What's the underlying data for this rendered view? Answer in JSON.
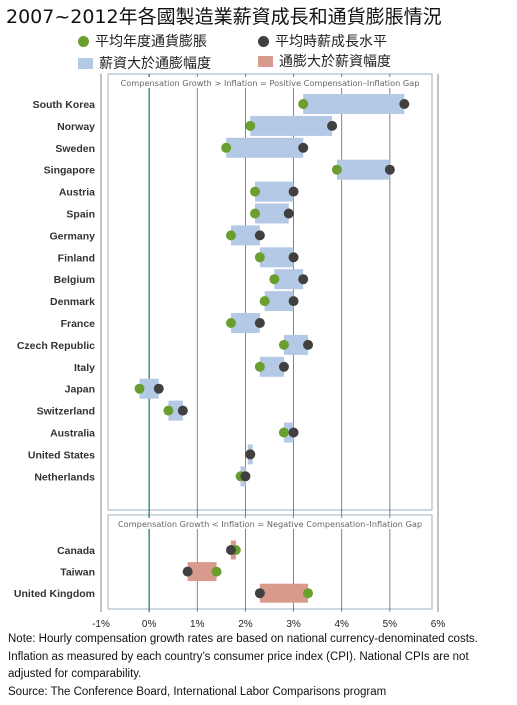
{
  "title": "2007~2012年各國製造業薪資成長和通貨膨脹情況",
  "legend": {
    "inflation": "平均年度通貨膨脹",
    "wage": "平均時薪成長水平",
    "positive_gap": "薪資大於通膨幅度",
    "negative_gap": "通膨大於薪資幅度"
  },
  "colors": {
    "inflation_dot": "#6a9e2e",
    "wage_dot": "#404040",
    "positive_bar": "#b4c9e6",
    "negative_bar": "#d99a8e",
    "zero_line": "#2b7a78",
    "panel_border": "#9fb0c0"
  },
  "chart_data": {
    "type": "dumbbell",
    "x_range": [
      -1,
      6
    ],
    "x_ticks": [
      "-1%",
      "0%",
      "1%",
      "2%",
      "3%",
      "4%",
      "5%",
      "6%"
    ],
    "grid": "vertical",
    "series": [
      {
        "name": "平均年度通貨膨脹",
        "key": "inflation"
      },
      {
        "name": "平均時薪成長水平",
        "key": "wage"
      }
    ],
    "panels": [
      {
        "header": "Compensation Growth > Inflation = Positive Compensation–Inflation Gap",
        "gap": "positive",
        "rows": [
          {
            "country": "South Korea",
            "inflation": 3.2,
            "wage": 5.3
          },
          {
            "country": "Norway",
            "inflation": 2.1,
            "wage": 3.8
          },
          {
            "country": "Sweden",
            "inflation": 1.6,
            "wage": 3.2
          },
          {
            "country": "Singapore",
            "inflation": 3.9,
            "wage": 5.0
          },
          {
            "country": "Austria",
            "inflation": 2.2,
            "wage": 3.0
          },
          {
            "country": "Spain",
            "inflation": 2.2,
            "wage": 2.9
          },
          {
            "country": "Germany",
            "inflation": 1.7,
            "wage": 2.3
          },
          {
            "country": "Finland",
            "inflation": 2.3,
            "wage": 3.0
          },
          {
            "country": "Belgium",
            "inflation": 2.6,
            "wage": 3.2
          },
          {
            "country": "Denmark",
            "inflation": 2.4,
            "wage": 3.0
          },
          {
            "country": "France",
            "inflation": 1.7,
            "wage": 2.3
          },
          {
            "country": "Czech Republic",
            "inflation": 2.8,
            "wage": 3.3
          },
          {
            "country": "Italy",
            "inflation": 2.3,
            "wage": 2.8
          },
          {
            "country": "Japan",
            "inflation": -0.2,
            "wage": 0.2
          },
          {
            "country": "Switzerland",
            "inflation": 0.4,
            "wage": 0.7
          },
          {
            "country": "Australia",
            "inflation": 2.8,
            "wage": 3.0
          },
          {
            "country": "United States",
            "inflation": 2.1,
            "wage": 2.1
          },
          {
            "country": "Netherlands",
            "inflation": 1.9,
            "wage": 2.0
          }
        ]
      },
      {
        "header": "Compensation Growth < Inflation = Negative Compensation–Inflation Gap",
        "gap": "negative",
        "rows": [
          {
            "country": "Canada",
            "inflation": 1.8,
            "wage": 1.7
          },
          {
            "country": "Taiwan",
            "inflation": 1.4,
            "wage": 0.8
          },
          {
            "country": "United Kingdom",
            "inflation": 3.3,
            "wage": 2.3
          }
        ]
      }
    ]
  },
  "notes": [
    "Note: Hourly compensation growth rates are based on national currency-denominated costs.",
    "Inflation as measured by each country’s consumer price index (CPI). National CPIs are not",
    "adjusted for comparability.",
    "Source: The Conference Board, International Labor Comparisons program"
  ]
}
